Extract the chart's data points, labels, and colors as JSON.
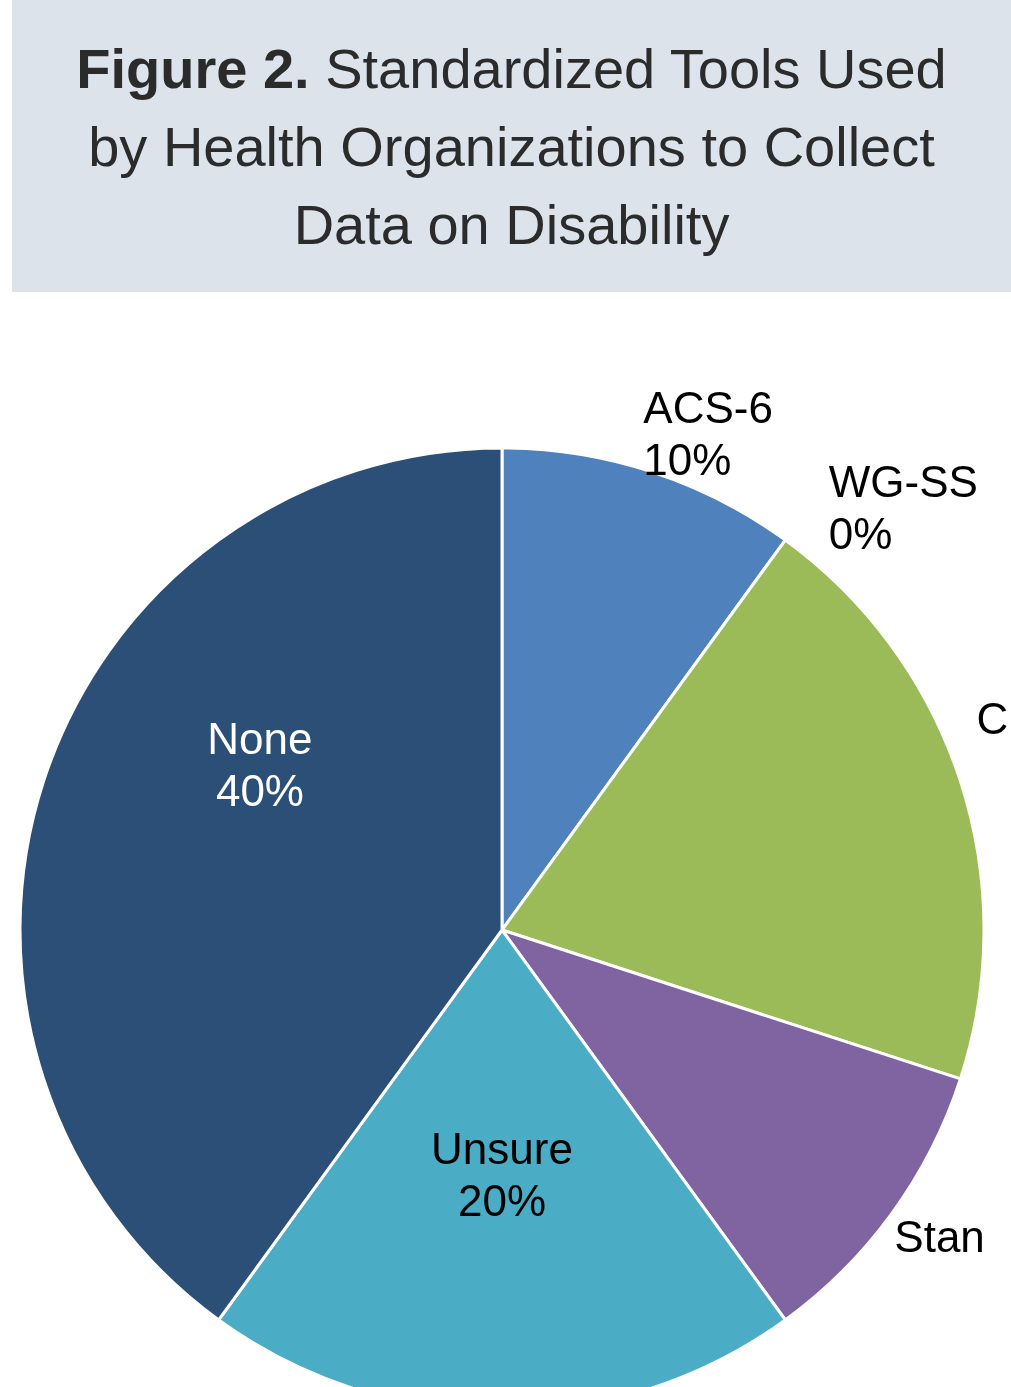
{
  "chart_data": {
    "type": "pie",
    "title": "Figure 2. Standardized Tools Used by Health Organizations to Collect Data on Disability",
    "categories": [
      "ACS-6",
      "WG-SS",
      "C",
      "Stan",
      "Unsure",
      "None"
    ],
    "values": [
      10,
      0,
      20,
      10,
      20,
      40
    ],
    "colors": [
      "#4f81bd",
      "#c0504d",
      "#9bbb59",
      "#8064a2",
      "#4bacc6",
      "#2c4f77"
    ],
    "value_labels": [
      "10%",
      "0%",
      null,
      null,
      "20%",
      "40%"
    ],
    "legend": false
  }
}
